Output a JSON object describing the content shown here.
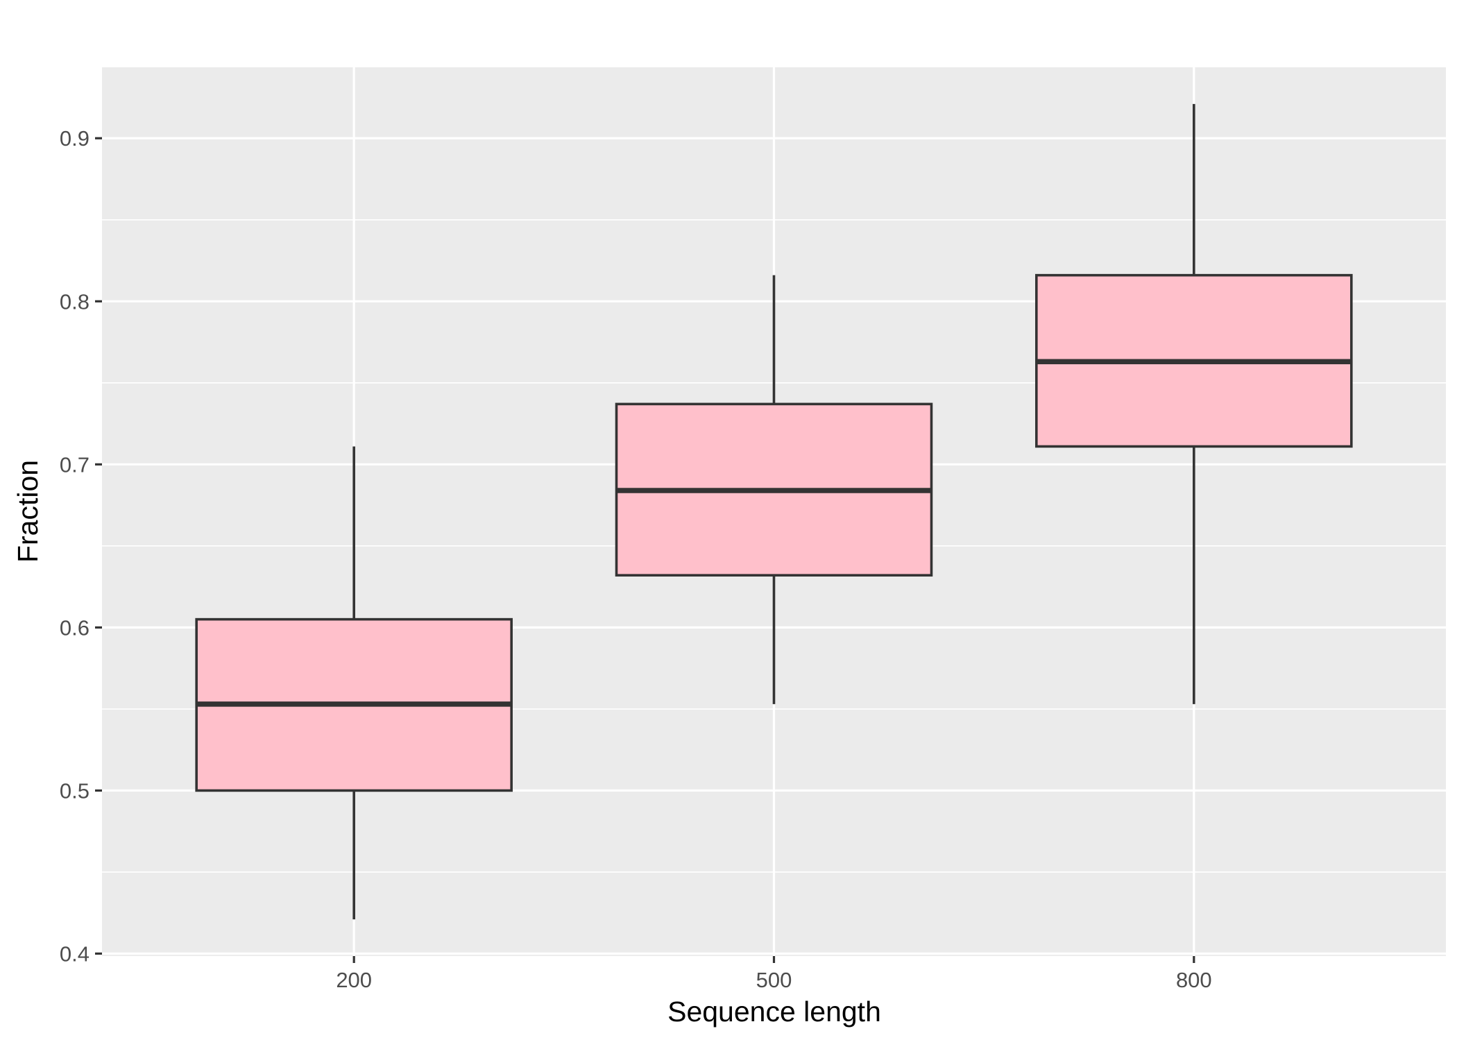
{
  "chart_data": {
    "type": "boxplot",
    "title": "",
    "xlabel": "Sequence length",
    "ylabel": "Fraction",
    "categories": [
      "200",
      "500",
      "800"
    ],
    "boxes": [
      {
        "category": "200",
        "whisker_low": 0.421,
        "q1": 0.5,
        "median": 0.553,
        "q3": 0.605,
        "whisker_high": 0.711
      },
      {
        "category": "500",
        "whisker_low": 0.553,
        "q1": 0.632,
        "median": 0.684,
        "q3": 0.737,
        "whisker_high": 0.816
      },
      {
        "category": "800",
        "whisker_low": 0.553,
        "q1": 0.711,
        "median": 0.763,
        "q3": 0.816,
        "whisker_high": 0.921
      }
    ],
    "yticks": [
      0.4,
      0.5,
      0.6,
      0.7,
      0.8,
      0.9
    ],
    "ytick_labels": [
      "0.4",
      "0.5",
      "0.6",
      "0.7",
      "0.8",
      "0.9"
    ],
    "ylim": [
      0.3985,
      0.9435
    ],
    "grid": true,
    "legend": "none",
    "colors": {
      "box_fill": "#FFC0CB",
      "box_stroke": "#333333",
      "panel_background": "#EBEBEB",
      "grid_major": "#FFFFFF"
    }
  }
}
